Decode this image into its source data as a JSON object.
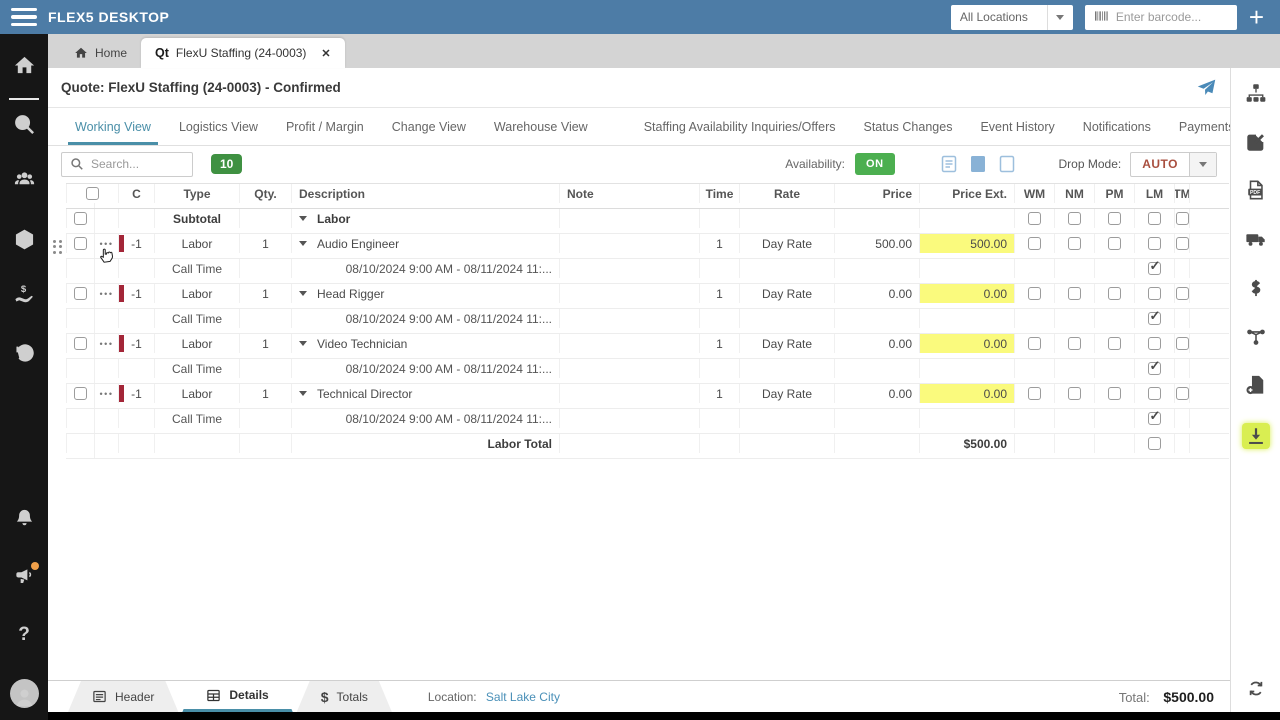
{
  "app": {
    "title": "FLEX5 DESKTOP"
  },
  "topbar": {
    "location_selector": {
      "value": "All Locations"
    },
    "barcode": {
      "placeholder": "Enter barcode..."
    },
    "icons": [
      "menu-icon",
      "barcode-icon",
      "add-icon"
    ]
  },
  "window_tabs": [
    {
      "label": "Home",
      "icon": "home-icon",
      "active": false
    },
    {
      "label": "FlexU Staffing (24-0003)",
      "icon": "quote-icon",
      "icon_text": "Qt",
      "active": true,
      "close_glyph": "✕"
    }
  ],
  "quote_header": {
    "title": "Quote: FlexU Staffing (24-0003) - Confirmed",
    "send_icon": "send-icon"
  },
  "view_tabs": {
    "active": "Working View",
    "primary": [
      "Working View",
      "Logistics View",
      "Profit / Margin",
      "Change View",
      "Warehouse View"
    ],
    "secondary": [
      "Staffing Availability Inquiries/Offers",
      "Status Changes",
      "Event History",
      "Notifications",
      "Payments"
    ]
  },
  "toolbar": {
    "search": {
      "placeholder": "Search..."
    },
    "count_badge": "10",
    "availability": {
      "label": "Availability:",
      "state": "ON"
    },
    "doc_icons": [
      "document-lines-icon",
      "document-filled-icon",
      "document-blank-icon"
    ],
    "drop_mode": {
      "label": "Drop Mode:",
      "value": "AUTO"
    }
  },
  "table": {
    "columns": [
      "C",
      "Type",
      "Qty.",
      "Description",
      "Note",
      "Time",
      "Rate",
      "Price",
      "Price Ext.",
      "WM",
      "NM",
      "PM",
      "LM",
      "TM"
    ],
    "group_row": {
      "type": "Subtotal",
      "description": "Labor"
    },
    "rows": [
      {
        "change": "-1",
        "type": "Labor",
        "qty": "1",
        "description": "Audio Engineer",
        "note": "",
        "time": "1",
        "rate": "Day Rate",
        "price": "500.00",
        "price_ext": "500.00",
        "call_time": {
          "type": "Call Time",
          "date_range": "08/10/2024 9:00 AM - 08/11/2024 11:...",
          "lm_checked": true
        }
      },
      {
        "change": "-1",
        "type": "Labor",
        "qty": "1",
        "description": "Head Rigger",
        "note": "",
        "time": "1",
        "rate": "Day Rate",
        "price": "0.00",
        "price_ext": "0.00",
        "call_time": {
          "type": "Call Time",
          "date_range": "08/10/2024 9:00 AM - 08/11/2024 11:...",
          "lm_checked": true
        }
      },
      {
        "change": "-1",
        "type": "Labor",
        "qty": "1",
        "description": "Video Technician",
        "note": "",
        "time": "1",
        "rate": "Day Rate",
        "price": "0.00",
        "price_ext": "0.00",
        "call_time": {
          "type": "Call Time",
          "date_range": "08/10/2024 9:00 AM - 08/11/2024 11:...",
          "lm_checked": true
        }
      },
      {
        "change": "-1",
        "type": "Labor",
        "qty": "1",
        "description": "Technical Director",
        "note": "",
        "time": "1",
        "rate": "Day Rate",
        "price": "0.00",
        "price_ext": "0.00",
        "call_time": {
          "type": "Call Time",
          "date_range": "08/10/2024 9:00 AM - 08/11/2024 11:...",
          "lm_checked": true
        }
      }
    ],
    "total_row": {
      "label": "Labor Total",
      "price_ext": "$500.00"
    }
  },
  "left_sidebar": {
    "icons": [
      "home-icon",
      "search-icon",
      "users-icon",
      "box-icon",
      "hand-dollar-icon",
      "history-icon",
      "bell-icon",
      "megaphone-icon",
      "help-icon",
      "avatar"
    ]
  },
  "right_sidebar": {
    "icons": [
      "sitemap-icon",
      "edit-icon",
      "pdf-icon",
      "truck-icon",
      "dollar-icon",
      "share-icon",
      "file-add-icon",
      "download-icon"
    ]
  },
  "footer": {
    "tabs": [
      {
        "label": "Header",
        "icon": "header-icon",
        "active": false
      },
      {
        "label": "Details",
        "icon": "details-icon",
        "active": true
      },
      {
        "label": "Totals",
        "icon": "totals-icon",
        "active": false
      }
    ],
    "location": {
      "label": "Location:",
      "value": "Salt Lake City"
    },
    "total": {
      "label": "Total:",
      "value": "$500.00"
    },
    "refresh_icon": "refresh-icon"
  },
  "colors": {
    "topbar_blue": "#4d7ca6",
    "sidebar_black": "#161616",
    "accent_teal": "#4a8fa8",
    "on_green": "#4caf50",
    "badge_green": "#3f9142",
    "highlight_yellow": "#fafa7d",
    "group_red": "#a32638",
    "auto_red": "#a94f3f",
    "link_blue": "#4a90b8",
    "download_highlight": "#d9ee52"
  }
}
